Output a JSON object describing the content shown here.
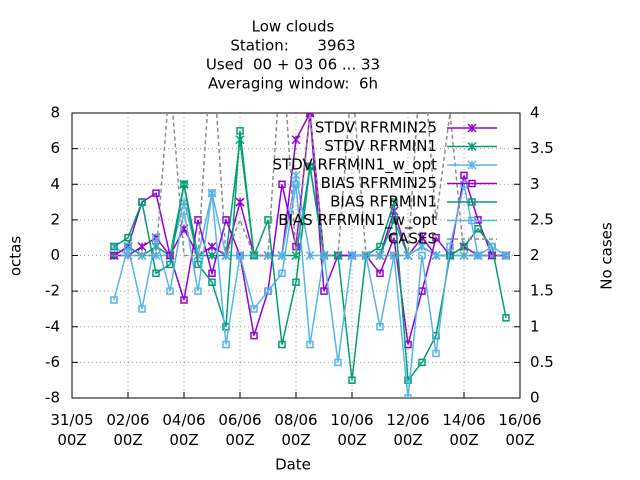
{
  "chart_data": {
    "type": "line",
    "title": [
      "Low clouds",
      "Station:      3963",
      "Used  00 + 03 06 ... 33",
      "Averaging window:  6h"
    ],
    "xlabel": "Date",
    "ylabel": "octas",
    "y2label": "No cases",
    "xlim": [
      "31/05 00Z",
      "16/06 00Z"
    ],
    "xticks": [
      "31/05 00Z",
      "02/06 00Z",
      "04/06 00Z",
      "06/06 00Z",
      "08/06 00Z",
      "10/06 00Z",
      "12/06 00Z",
      "14/06 00Z",
      "16/06 00Z"
    ],
    "ylim": [
      -8,
      8
    ],
    "yticks": [
      -8,
      -6,
      -4,
      -2,
      0,
      2,
      4,
      6,
      8
    ],
    "y2lim": [
      0,
      4
    ],
    "y2ticks": [
      0,
      0.5,
      1,
      1.5,
      2,
      2.5,
      3,
      3.5,
      4
    ],
    "grid": true,
    "legend": "top-right",
    "x": [
      "01/06 12Z",
      "02/06 00Z",
      "02/06 12Z",
      "03/06 00Z",
      "03/06 12Z",
      "04/06 00Z",
      "04/06 12Z",
      "05/06 00Z",
      "05/06 12Z",
      "06/06 00Z",
      "06/06 12Z",
      "07/06 00Z",
      "07/06 12Z",
      "08/06 00Z",
      "08/06 12Z",
      "09/06 00Z",
      "09/06 12Z",
      "10/06 00Z",
      "10/06 12Z",
      "11/06 00Z",
      "11/06 12Z",
      "12/06 00Z",
      "12/06 12Z",
      "13/06 00Z",
      "13/06 12Z",
      "14/06 00Z",
      "14/06 12Z",
      "15/06 00Z",
      "15/06 12Z"
    ],
    "series": [
      {
        "name": "STDV RFRMIN25",
        "color": "#9400d3",
        "marker": "x",
        "values": [
          0,
          0,
          0.5,
          1,
          0,
          1.5,
          0,
          0.5,
          0,
          3,
          0,
          0,
          0,
          6.5,
          8,
          0,
          0,
          0,
          0,
          0,
          2.5,
          0,
          1,
          0,
          0,
          0.5,
          0,
          0,
          0
        ]
      },
      {
        "name": "STDV RFRMIN1",
        "color": "#009e73",
        "marker": "x",
        "values": [
          0,
          0.5,
          0,
          0.5,
          0,
          4,
          0,
          0,
          0,
          6.5,
          0,
          0,
          0,
          0,
          5,
          0,
          0,
          0,
          0,
          0,
          2,
          0,
          0.5,
          0,
          0,
          0,
          0,
          0,
          0
        ]
      },
      {
        "name": "STDV RFRMIN1_w_opt",
        "color": "#56b4e9",
        "marker": "x",
        "values": [
          0.5,
          0,
          0,
          0,
          0,
          3,
          0,
          3.5,
          0,
          0,
          0,
          0,
          0,
          4.5,
          0,
          0,
          0,
          0,
          0,
          0,
          0,
          0,
          0.5,
          0,
          0,
          0,
          0,
          0,
          0
        ]
      },
      {
        "name": "BIAS RFRMIN25",
        "color": "#9400d3",
        "marker": "square",
        "values": [
          0,
          0.5,
          3,
          3.5,
          0,
          -2.5,
          2,
          -1,
          2,
          0,
          -4.5,
          -2,
          4,
          0.5,
          8,
          -2,
          0,
          0,
          0,
          -1,
          1,
          -5,
          -2,
          1,
          0,
          4.5,
          2,
          0,
          0
        ]
      },
      {
        "name": "BIAS RFRMIN1",
        "color": "#009e73",
        "marker": "square",
        "values": [
          0.5,
          1,
          3,
          -1,
          -0.5,
          4,
          -0.5,
          -1.5,
          -4,
          7,
          0,
          2,
          -5,
          -1.5,
          5,
          0,
          0,
          -7,
          0,
          0.5,
          3,
          -7,
          -6,
          -4.5,
          0,
          0.5,
          1.5,
          0.5,
          -3.5
        ]
      },
      {
        "name": "BIAS RFRMIN1_w_opt",
        "color": "#56b4e9",
        "marker": "square",
        "values": [
          -2.5,
          0.5,
          -3,
          1,
          -2,
          2.5,
          -2,
          3.5,
          -5,
          0,
          -3,
          -2,
          -1,
          4,
          -5,
          0,
          -6,
          0,
          0,
          -4,
          0,
          -8,
          0,
          -5.5,
          0.5,
          4,
          0,
          0.5,
          0
        ]
      },
      {
        "name": "CASES",
        "color": "#8c8c8c",
        "marker": "none",
        "dash": true,
        "axis": "y2",
        "values": [
          2,
          2,
          2,
          2,
          4.5,
          2,
          2,
          5,
          2,
          2.5,
          2,
          2,
          5,
          2,
          4,
          2,
          2,
          4.5,
          2,
          2,
          2,
          2,
          5,
          2.5,
          4,
          2,
          2,
          2,
          2
        ]
      }
    ]
  }
}
